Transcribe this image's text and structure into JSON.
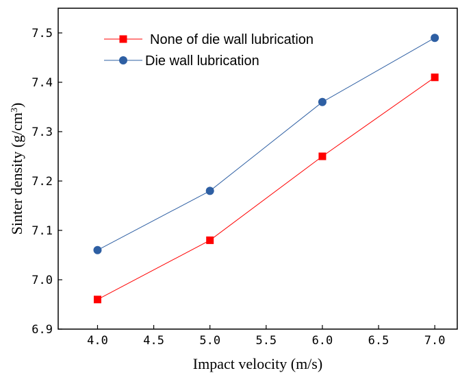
{
  "chart_data": {
    "type": "line",
    "title": "",
    "xlabel": "Impact velocity (m/s)",
    "ylabel_main": "Sinter density (g/cm",
    "ylabel_sup": "3",
    "ylabel_close": ")",
    "xlim": [
      3.65,
      7.2
    ],
    "ylim": [
      6.9,
      7.55
    ],
    "x_ticks": [
      4.0,
      4.5,
      5.0,
      5.5,
      6.0,
      6.5,
      7.0
    ],
    "x_tick_labels": [
      "4.0",
      "4.5",
      "5.0",
      "5.5",
      "6.0",
      "6.5",
      "7.0"
    ],
    "y_ticks": [
      6.9,
      7.0,
      7.1,
      7.2,
      7.3,
      7.4,
      7.5
    ],
    "y_tick_labels": [
      "6.9",
      "7.0",
      "7.1",
      "7.2",
      "7.3",
      "7.4",
      "7.5"
    ],
    "legend_position": "top-left",
    "grid": false,
    "series": [
      {
        "name": "None of die wall lubrication",
        "color": "#ff0000",
        "marker": "square",
        "x": [
          4.0,
          5.0,
          6.0,
          7.0
        ],
        "y": [
          6.96,
          7.08,
          7.25,
          7.41
        ]
      },
      {
        "name": "Die wall lubrication",
        "color": "#2e5fa3",
        "marker": "circle",
        "x": [
          4.0,
          5.0,
          6.0,
          7.0
        ],
        "y": [
          7.06,
          7.18,
          7.36,
          7.49
        ]
      }
    ]
  }
}
